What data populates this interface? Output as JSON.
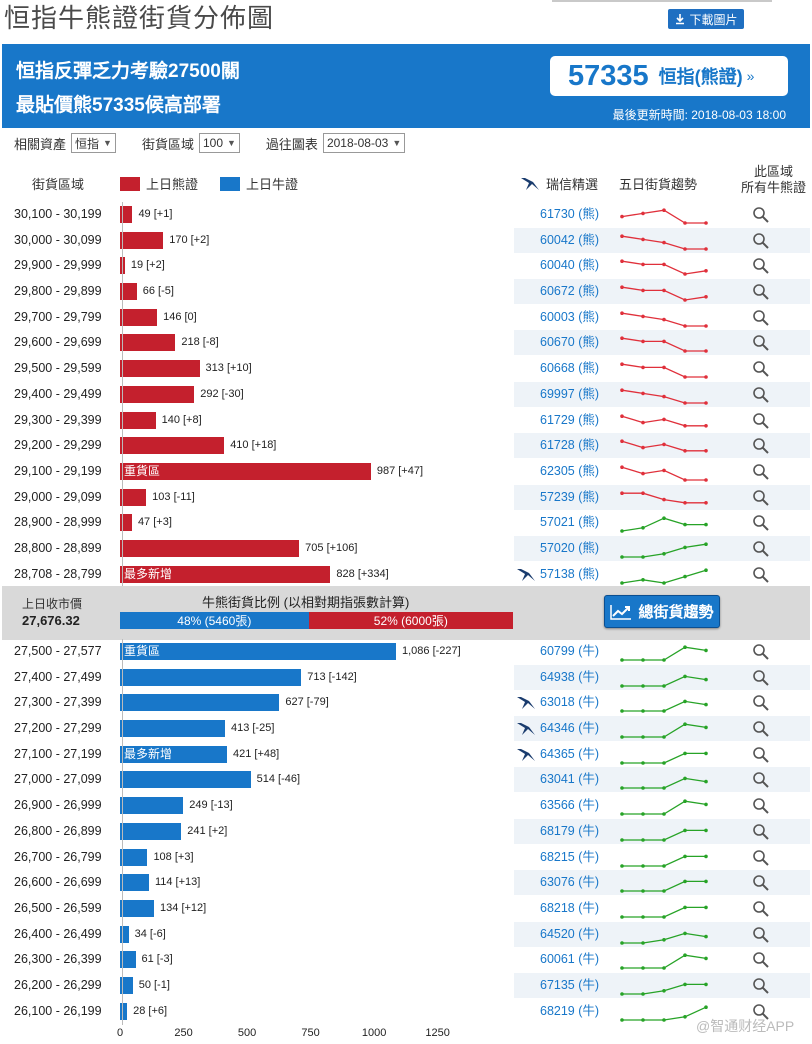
{
  "page": {
    "title": "恒指牛熊證街貨分佈圖",
    "download_label": "下載圖片"
  },
  "header": {
    "line1": "恒指反彈乏力考驗27500關",
    "line2": "最貼價熊57335候高部署",
    "quote_code": "57335",
    "quote_label": "恒指(熊證)",
    "quote_arrow": "»",
    "updated": "最後更新時間: 2018-08-03 18:00"
  },
  "filters": {
    "asset_label": "相關資產",
    "asset_value": "恒指",
    "zone_label": "街貨區域",
    "zone_value": "100",
    "past_label": "過往圖表",
    "past_value": "2018-08-03"
  },
  "columns": {
    "zone": "街貨區域",
    "bear_legend": "上日熊證",
    "bull_legend": "上日牛證",
    "ubs": "瑞信精選",
    "trend": "五日街貨趨勢",
    "all_bull_1": "此區域",
    "all_bull_2": "所有牛熊證"
  },
  "colors": {
    "bear": "#c4202d",
    "bull": "#1877c9",
    "trend_bear": "#e0303b",
    "trend_bull": "#27a327"
  },
  "axis": {
    "max": 1400,
    "ticks": [
      0,
      250,
      500,
      750,
      1000,
      1250
    ]
  },
  "bear_rows": [
    {
      "range": "30,100 - 30,199",
      "value": 49,
      "label": "49 [+1]",
      "code": "61730 (熊)",
      "trend": [
        3,
        4,
        5,
        1,
        1
      ]
    },
    {
      "range": "30,000 - 30,099",
      "value": 170,
      "label": "170 [+2]",
      "code": "60042 (熊)",
      "trend": [
        5,
        4,
        3,
        1,
        1
      ]
    },
    {
      "range": "29,900 - 29,999",
      "value": 19,
      "label": "19 [+2]",
      "code": "60040 (熊)",
      "trend": [
        5,
        4,
        4,
        1,
        2
      ]
    },
    {
      "range": "29,800 - 29,899",
      "value": 66,
      "label": "66 [-5]",
      "code": "60672 (熊)",
      "trend": [
        5,
        4,
        4,
        1,
        2
      ]
    },
    {
      "range": "29,700 - 29,799",
      "value": 146,
      "label": "146 [0]",
      "code": "60003 (熊)",
      "trend": [
        5,
        4,
        3,
        1,
        1
      ]
    },
    {
      "range": "29,600 - 29,699",
      "value": 218,
      "label": "218 [-8]",
      "code": "60670 (熊)",
      "trend": [
        5,
        4,
        4,
        1,
        1
      ]
    },
    {
      "range": "29,500 - 29,599",
      "value": 313,
      "label": "313 [+10]",
      "code": "60668 (熊)",
      "trend": [
        5,
        4,
        4,
        1,
        1
      ]
    },
    {
      "range": "29,400 - 29,499",
      "value": 292,
      "label": "292 [-30]",
      "code": "69997 (熊)",
      "trend": [
        5,
        4,
        3,
        1,
        1
      ]
    },
    {
      "range": "29,300 - 29,399",
      "value": 140,
      "label": "140 [+8]",
      "code": "61729 (熊)",
      "trend": [
        5,
        3,
        4,
        2,
        2
      ]
    },
    {
      "range": "29,200 - 29,299",
      "value": 410,
      "label": "410 [+18]",
      "code": "61728 (熊)",
      "trend": [
        5,
        3,
        4,
        2,
        2
      ]
    },
    {
      "range": "29,100 - 29,199",
      "value": 987,
      "label": "987 [+47]",
      "code": "62305 (熊)",
      "tag": "重貨區",
      "trend": [
        5,
        3,
        4,
        1,
        1
      ]
    },
    {
      "range": "29,000 - 29,099",
      "value": 103,
      "label": "103 [-11]",
      "code": "57239 (熊)",
      "trend": [
        5,
        5,
        3,
        2,
        2
      ]
    },
    {
      "range": "28,900 - 28,999",
      "value": 47,
      "label": "47 [+3]",
      "code": "57021 (熊)",
      "green": true,
      "trend": [
        1,
        2,
        5,
        3,
        3
      ]
    },
    {
      "range": "28,800 - 28,899",
      "value": 705,
      "label": "705 [+106]",
      "code": "57020 (熊)",
      "green": true,
      "trend": [
        1,
        1,
        2,
        4,
        5
      ]
    },
    {
      "range": "28,708 - 28,799",
      "value": 828,
      "label": "828 [+334]",
      "code": "57138 (熊)",
      "tag": "最多新增",
      "ubs": true,
      "green": true,
      "trend": [
        1,
        2,
        1,
        3,
        5
      ]
    }
  ],
  "middle": {
    "prev_close_label": "上日收市價",
    "prev_close_value": "27,676.32",
    "ratio_label": "牛熊街貨比例 (以相對期指張數計算)",
    "bull_ratio": "48% (5460張)",
    "bear_ratio": "52% (6000張)",
    "bull_pct": 48,
    "trend_button": "總街貨趨勢"
  },
  "bull_rows": [
    {
      "range": "27,500 - 27,577",
      "value": 1086,
      "label": "1,086 [-227]",
      "code": "60799 (牛)",
      "tag": "重貨區",
      "trend": [
        1,
        1,
        1,
        5,
        4
      ]
    },
    {
      "range": "27,400 - 27,499",
      "value": 713,
      "label": "713 [-142]",
      "code": "64938 (牛)",
      "trend": [
        1,
        1,
        1,
        4,
        3
      ]
    },
    {
      "range": "27,300 - 27,399",
      "value": 627,
      "label": "627 [-79]",
      "code": "63018 (牛)",
      "ubs": true,
      "trend": [
        1,
        1,
        1,
        4,
        3
      ]
    },
    {
      "range": "27,200 - 27,299",
      "value": 413,
      "label": "413 [-25]",
      "code": "64346 (牛)",
      "ubs": true,
      "trend": [
        1,
        1,
        1,
        5,
        4
      ]
    },
    {
      "range": "27,100 - 27,199",
      "value": 421,
      "label": "421 [+48]",
      "code": "64365 (牛)",
      "tag": "最多新增",
      "ubs": true,
      "trend": [
        1,
        1,
        1,
        4,
        4
      ]
    },
    {
      "range": "27,000 - 27,099",
      "value": 514,
      "label": "514 [-46]",
      "code": "63041 (牛)",
      "trend": [
        1,
        1,
        1,
        4,
        3
      ]
    },
    {
      "range": "26,900 - 26,999",
      "value": 249,
      "label": "249 [-13]",
      "code": "63566 (牛)",
      "trend": [
        1,
        1,
        1,
        5,
        4
      ]
    },
    {
      "range": "26,800 - 26,899",
      "value": 241,
      "label": "241 [+2]",
      "code": "68179 (牛)",
      "trend": [
        1,
        1,
        1,
        4,
        4
      ]
    },
    {
      "range": "26,700 - 26,799",
      "value": 108,
      "label": "108 [+3]",
      "code": "68215 (牛)",
      "trend": [
        1,
        1,
        1,
        4,
        4
      ]
    },
    {
      "range": "26,600 - 26,699",
      "value": 114,
      "label": "114 [+13]",
      "code": "63076 (牛)",
      "trend": [
        1,
        1,
        1,
        4,
        4
      ]
    },
    {
      "range": "26,500 - 26,599",
      "value": 134,
      "label": "134 [+12]",
      "code": "68218 (牛)",
      "trend": [
        1,
        1,
        1,
        4,
        4
      ]
    },
    {
      "range": "26,400 - 26,499",
      "value": 34,
      "label": "34 [-6]",
      "code": "64520 (牛)",
      "trend": [
        1,
        1,
        2,
        4,
        3
      ]
    },
    {
      "range": "26,300 - 26,399",
      "value": 61,
      "label": "61 [-3]",
      "code": "60061 (牛)",
      "trend": [
        1,
        1,
        1,
        5,
        4
      ]
    },
    {
      "range": "26,200 - 26,299",
      "value": 50,
      "label": "50 [-1]",
      "code": "67135 (牛)",
      "trend": [
        1,
        1,
        2,
        4,
        4
      ]
    },
    {
      "range": "26,100 - 26,199",
      "value": 28,
      "label": "28 [+6]",
      "code": "68219 (牛)",
      "trend": [
        1,
        1,
        1,
        2,
        5
      ]
    }
  ],
  "watermark": "@智通财经APP"
}
